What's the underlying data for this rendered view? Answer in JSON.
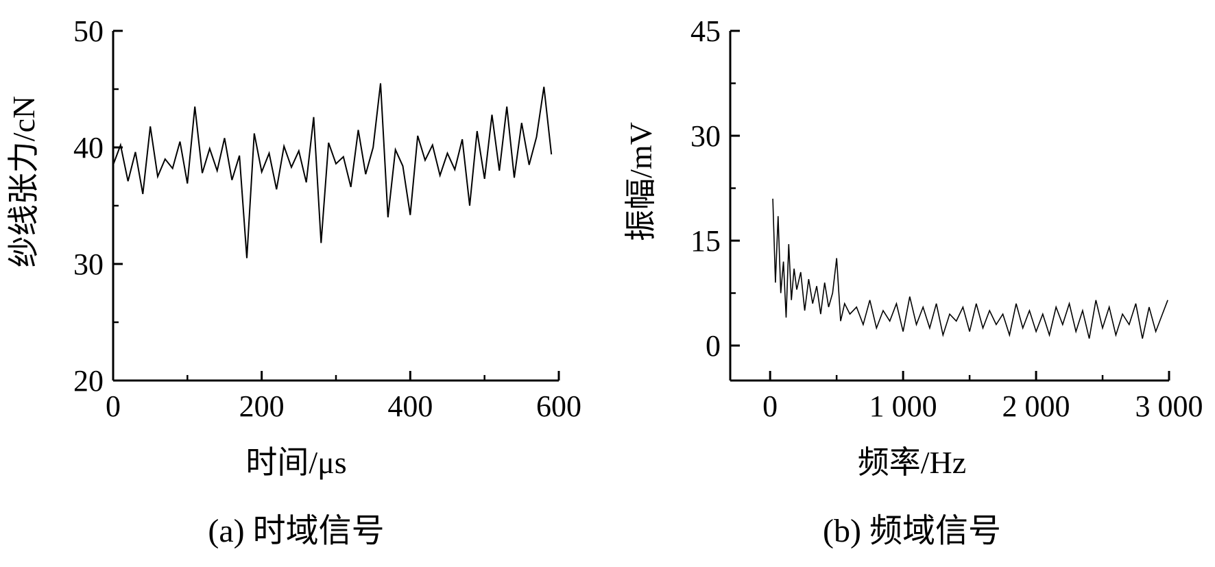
{
  "chart_data": [
    {
      "type": "line",
      "caption": "(a) 时域信号",
      "xlabel": "时间/μs",
      "ylabel": "纱线张力/cN",
      "xlim": [
        0,
        600
      ],
      "ylim": [
        20,
        50
      ],
      "xticks": [
        "0",
        "200",
        "400",
        "600"
      ],
      "yticks": [
        "20",
        "30",
        "40",
        "50"
      ],
      "grid": false,
      "series": [
        {
          "x": [
            0,
            10,
            20,
            30,
            40,
            50,
            60,
            70,
            80,
            90,
            100,
            110,
            120,
            130,
            140,
            150,
            160,
            170,
            180,
            190,
            200,
            210,
            220,
            230,
            240,
            250,
            260,
            270,
            280,
            290,
            300,
            310,
            320,
            330,
            340,
            350,
            360,
            370,
            380,
            390,
            400,
            410,
            420,
            430,
            440,
            450,
            460,
            470,
            480,
            490,
            500,
            510,
            520,
            530,
            540,
            550,
            560,
            570,
            580,
            590
          ],
          "values": [
            38.5,
            40.2,
            37.1,
            39.6,
            36.0,
            41.8,
            37.5,
            39.0,
            38.2,
            40.5,
            36.9,
            43.5,
            37.8,
            39.9,
            38.0,
            40.8,
            37.2,
            39.3,
            30.5,
            41.2,
            37.9,
            39.5,
            36.4,
            40.1,
            38.3,
            39.7,
            37.0,
            42.6,
            31.8,
            40.4,
            38.6,
            39.2,
            36.6,
            41.5,
            37.7,
            40.0,
            45.5,
            34.0,
            39.8,
            38.4,
            34.2,
            41.0,
            38.9,
            40.2,
            37.6,
            39.5,
            38.1,
            40.7,
            35.0,
            41.4,
            37.3,
            42.8,
            38.0,
            43.5,
            37.4,
            42.1,
            38.5,
            40.9,
            45.2,
            39.4
          ]
        }
      ]
    },
    {
      "type": "line",
      "caption": "(b) 频域信号",
      "xlabel": "频率/Hz",
      "ylabel": "振幅/mV",
      "xlim": [
        -300,
        3000
      ],
      "ylim": [
        -5,
        45
      ],
      "xticks": [
        "0",
        "1 000",
        "2 000",
        "3 000"
      ],
      "yticks": [
        "0",
        "15",
        "30",
        "45"
      ],
      "grid": false,
      "series": [
        {
          "x": [
            20,
            40,
            60,
            80,
            100,
            120,
            140,
            160,
            180,
            200,
            230,
            260,
            290,
            320,
            350,
            380,
            410,
            440,
            470,
            500,
            530,
            560,
            600,
            650,
            700,
            750,
            800,
            850,
            900,
            950,
            1000,
            1050,
            1100,
            1150,
            1200,
            1250,
            1300,
            1350,
            1400,
            1450,
            1500,
            1550,
            1600,
            1650,
            1700,
            1750,
            1800,
            1850,
            1900,
            1950,
            2000,
            2050,
            2100,
            2150,
            2200,
            2250,
            2300,
            2350,
            2400,
            2450,
            2500,
            2550,
            2600,
            2650,
            2700,
            2750,
            2800,
            2850,
            2900,
            2950,
            2990
          ],
          "values": [
            21.0,
            9.0,
            18.5,
            7.5,
            12.0,
            4.0,
            14.5,
            6.5,
            11.0,
            8.0,
            10.5,
            5.0,
            9.5,
            6.0,
            8.5,
            4.5,
            9.0,
            5.5,
            7.5,
            12.5,
            3.5,
            6.0,
            4.5,
            5.5,
            3.0,
            6.5,
            2.5,
            5.0,
            3.5,
            6.0,
            2.0,
            7.0,
            3.0,
            5.5,
            2.5,
            6.0,
            1.5,
            4.5,
            3.5,
            5.5,
            2.0,
            6.0,
            2.5,
            5.0,
            3.0,
            4.5,
            1.5,
            6.0,
            2.5,
            5.0,
            2.0,
            4.5,
            1.5,
            5.5,
            3.0,
            6.0,
            2.0,
            5.0,
            1.0,
            6.5,
            2.5,
            5.5,
            1.5,
            4.5,
            3.0,
            6.0,
            1.0,
            5.5,
            2.0,
            4.5,
            6.5
          ]
        }
      ]
    }
  ]
}
